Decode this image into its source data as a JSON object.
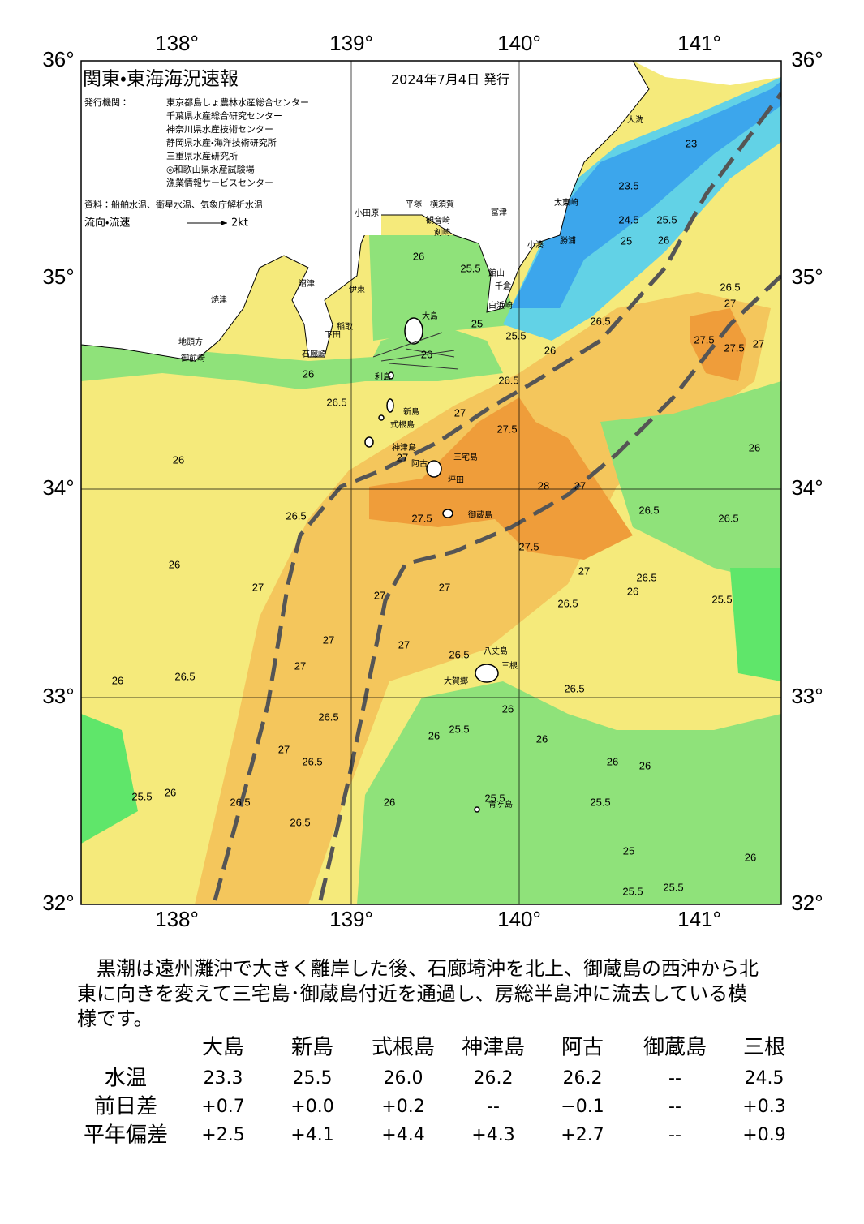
{
  "map": {
    "title": "関東・東海海況速報",
    "issued": "2024年7月4日 発行",
    "agencies_label": "発行機関：",
    "agencies": [
      "東京都島しょ農林水産総合センター",
      "千葉県水産総合研究センター",
      "神奈川県水産技術センター",
      "静岡県水産・海洋技術研究所",
      "三重県水産研究所",
      "◎和歌山県水産試験場",
      "漁業情報サービスセンター"
    ],
    "source": "資料：船舶水温、衛星水温、気象庁解析水温",
    "flow_legend": "流向・流速",
    "flow_speed": "2kt",
    "lon_labels": [
      "138°",
      "139°",
      "140°",
      "141°"
    ],
    "lat_labels": [
      "36°",
      "35°",
      "34°",
      "33°",
      "32°"
    ],
    "places": [
      "大洗",
      "太東崎",
      "勝浦",
      "小湊",
      "富津",
      "館山",
      "千倉",
      "白浜崎",
      "観音崎",
      "剣崎",
      "横須賀",
      "平塚",
      "小田原",
      "沼津",
      "伊東",
      "焼津",
      "稲取",
      "下田",
      "石廊崎",
      "地頭方",
      "御前崎",
      "大島",
      "利島",
      "新島",
      "式根島",
      "神津島",
      "阿古",
      "三宅島",
      "坪田",
      "御蔵島",
      "八丈島",
      "三根",
      "大賀郷",
      "青ヶ島"
    ],
    "contour_labels": [
      23,
      23.5,
      24.5,
      25.5,
      25,
      26,
      26.5,
      27,
      26,
      25.5,
      25,
      25.5,
      26,
      26,
      26.5,
      27.5,
      27.5,
      27,
      26,
      26.5,
      26.5,
      27,
      27.5,
      27,
      26,
      26,
      26.5,
      27.5,
      28,
      27,
      26.5,
      26.5,
      26,
      27.5,
      27,
      26.5,
      26,
      25.5,
      27,
      27,
      27,
      26.5,
      27,
      27,
      26.5,
      27,
      26.5,
      26,
      26.5,
      26.5,
      25.5,
      26,
      26,
      26,
      27,
      26.5,
      26,
      26,
      25.5,
      26,
      26.5,
      26,
      25.5,
      25.5,
      26.5,
      26,
      25,
      25.5,
      25.5
    ]
  },
  "summary_lines": [
    "　黒潮は遠州灘沖で大きく離岸した後、石廊埼沖を北上、御蔵島の西沖から北",
    "東に向きを変えて三宅島･御蔵島付近を通過し、房総半島沖に流去している模",
    "様です。"
  ],
  "table": {
    "columns": [
      "大島",
      "新島",
      "式根島",
      "神津島",
      "阿古",
      "御蔵島",
      "三根"
    ],
    "rows": [
      {
        "label": "水温",
        "values": [
          "23.3",
          "25.5",
          "26.0",
          "26.2",
          "26.2",
          "--",
          "24.5"
        ]
      },
      {
        "label": "前日差",
        "values": [
          "+0.7",
          "+0.0",
          "+0.2",
          "--",
          "−0.1",
          "--",
          "+0.3"
        ]
      },
      {
        "label": "平年偏差",
        "values": [
          "+2.5",
          "+4.1",
          "+4.4",
          "+4.3",
          "+2.7",
          "--",
          "+0.9"
        ]
      }
    ]
  }
}
